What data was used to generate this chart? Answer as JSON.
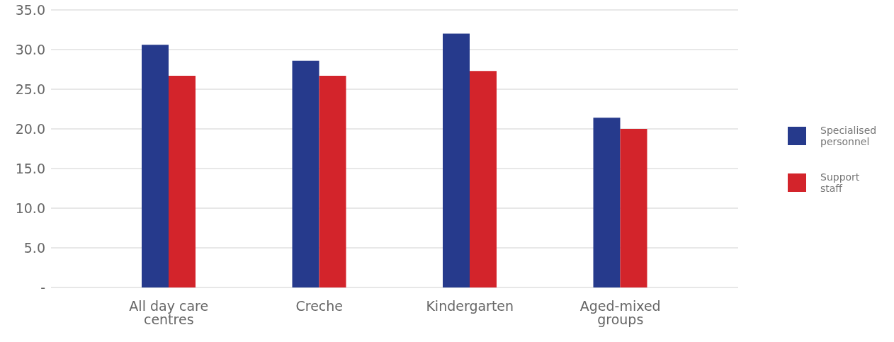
{
  "chart_data": {
    "type": "bar",
    "categories": [
      "All day care centres",
      "Creche",
      "Kindergarten",
      "Aged-mixed groups"
    ],
    "series": [
      {
        "name": "Specialised personnel",
        "color": "#263a8c",
        "values": [
          30.6,
          28.6,
          32.0,
          21.4
        ]
      },
      {
        "name": "Support staff",
        "color": "#d3242b",
        "values": [
          26.7,
          26.7,
          27.3,
          20.0
        ]
      }
    ],
    "ylim": [
      0,
      35
    ],
    "yticks": [
      {
        "value": 0,
        "label": "-"
      },
      {
        "value": 5,
        "label": "5.0"
      },
      {
        "value": 10,
        "label": "10.0"
      },
      {
        "value": 15,
        "label": "15.0"
      },
      {
        "value": 20,
        "label": "20.0"
      },
      {
        "value": 25,
        "label": "25.0"
      },
      {
        "value": 30,
        "label": "30.0"
      },
      {
        "value": 35,
        "label": "35.0"
      }
    ],
    "grid": "y",
    "legend": "right"
  }
}
